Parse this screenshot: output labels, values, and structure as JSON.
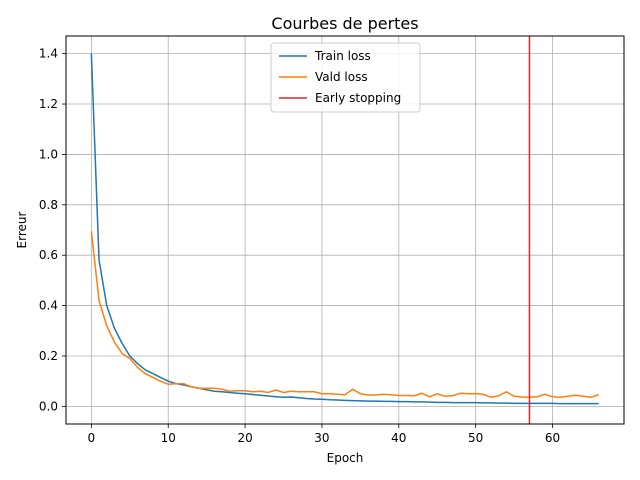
{
  "chart_data": {
    "type": "line",
    "title": "Courbes de pertes",
    "xlabel": "Epoch",
    "ylabel": "Erreur",
    "xlim": [
      -3.3,
      69.3
    ],
    "ylim": [
      -0.07,
      1.47
    ],
    "xticks": [
      0,
      10,
      20,
      30,
      40,
      50,
      60
    ],
    "xtick_labels": [
      "0",
      "10",
      "20",
      "30",
      "40",
      "50",
      "60"
    ],
    "yticks": [
      0.0,
      0.2,
      0.4,
      0.6,
      0.8,
      1.0,
      1.2,
      1.4
    ],
    "ytick_labels": [
      "0.0",
      "0.2",
      "0.4",
      "0.6",
      "0.8",
      "1.0",
      "1.2",
      "1.4"
    ],
    "grid": true,
    "legend_position": "upper-center",
    "series": [
      {
        "name": "Train loss",
        "color": "#1f77b4",
        "x": [
          0,
          1,
          2,
          3,
          4,
          5,
          6,
          7,
          8,
          9,
          10,
          11,
          12,
          13,
          14,
          15,
          16,
          17,
          18,
          19,
          20,
          21,
          22,
          23,
          24,
          25,
          26,
          27,
          28,
          29,
          30,
          31,
          32,
          33,
          34,
          35,
          36,
          37,
          38,
          39,
          40,
          41,
          42,
          43,
          44,
          45,
          46,
          47,
          48,
          49,
          50,
          51,
          52,
          53,
          54,
          55,
          56,
          57,
          58,
          59,
          60,
          61,
          62,
          63,
          64,
          65,
          66
        ],
        "values": [
          1.4,
          0.58,
          0.4,
          0.31,
          0.25,
          0.2,
          0.17,
          0.145,
          0.13,
          0.115,
          0.1,
          0.09,
          0.085,
          0.078,
          0.072,
          0.066,
          0.06,
          0.058,
          0.055,
          0.052,
          0.05,
          0.047,
          0.044,
          0.041,
          0.038,
          0.036,
          0.037,
          0.034,
          0.031,
          0.029,
          0.028,
          0.026,
          0.025,
          0.024,
          0.023,
          0.022,
          0.021,
          0.021,
          0.02,
          0.02,
          0.019,
          0.019,
          0.018,
          0.018,
          0.017,
          0.016,
          0.016,
          0.015,
          0.015,
          0.015,
          0.015,
          0.014,
          0.014,
          0.013,
          0.013,
          0.012,
          0.012,
          0.012,
          0.012,
          0.012,
          0.012,
          0.011,
          0.011,
          0.011,
          0.011,
          0.011,
          0.011
        ]
      },
      {
        "name": "Vald loss",
        "color": "#ff7f0e",
        "x": [
          0,
          1,
          2,
          3,
          4,
          5,
          6,
          7,
          8,
          9,
          10,
          11,
          12,
          13,
          14,
          15,
          16,
          17,
          18,
          19,
          20,
          21,
          22,
          23,
          24,
          25,
          26,
          27,
          28,
          29,
          30,
          31,
          32,
          33,
          34,
          35,
          36,
          37,
          38,
          39,
          40,
          41,
          42,
          43,
          44,
          45,
          46,
          47,
          48,
          49,
          50,
          51,
          52,
          53,
          54,
          55,
          56,
          57,
          58,
          59,
          60,
          61,
          62,
          63,
          64,
          65,
          66
        ],
        "values": [
          0.695,
          0.42,
          0.32,
          0.255,
          0.21,
          0.19,
          0.155,
          0.13,
          0.115,
          0.1,
          0.088,
          0.09,
          0.09,
          0.078,
          0.072,
          0.072,
          0.072,
          0.068,
          0.06,
          0.062,
          0.062,
          0.058,
          0.06,
          0.055,
          0.065,
          0.055,
          0.06,
          0.058,
          0.058,
          0.058,
          0.05,
          0.05,
          0.048,
          0.046,
          0.068,
          0.05,
          0.045,
          0.045,
          0.048,
          0.046,
          0.043,
          0.043,
          0.042,
          0.052,
          0.038,
          0.05,
          0.04,
          0.042,
          0.052,
          0.05,
          0.05,
          0.048,
          0.036,
          0.042,
          0.058,
          0.04,
          0.037,
          0.036,
          0.038,
          0.048,
          0.038,
          0.036,
          0.04,
          0.044,
          0.04,
          0.036,
          0.046
        ]
      }
    ],
    "vlines": [
      {
        "name": "Early stopping",
        "x": 57,
        "color": "#d62728"
      }
    ]
  }
}
